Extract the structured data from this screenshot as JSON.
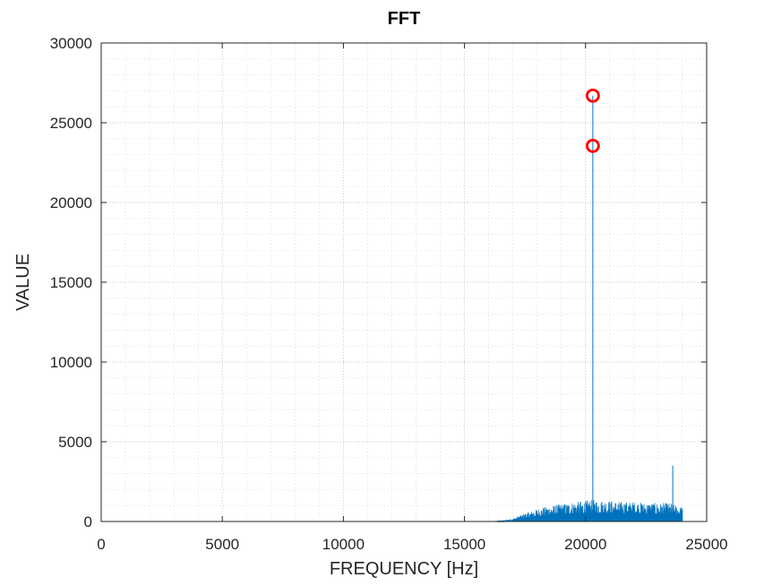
{
  "chart_data": {
    "type": "line",
    "title": "FFT",
    "xlabel": "FREQUENCY [Hz]",
    "ylabel": "VALUE",
    "xlim": [
      0,
      25000
    ],
    "ylim": [
      0,
      30000
    ],
    "xticks": [
      0,
      5000,
      10000,
      15000,
      20000,
      25000
    ],
    "yticks": [
      0,
      5000,
      10000,
      15000,
      20000,
      25000,
      30000
    ],
    "grid": true,
    "minor_grid": true,
    "series": [
      {
        "color": "#0072BD",
        "style": "spectrum-stem",
        "envelope": {
          "x": [
            0,
            16200,
            16500,
            17000,
            17500,
            18000,
            18500,
            19000,
            19500,
            20000,
            20300,
            21000,
            21500,
            22000,
            22500,
            23000,
            23500,
            23700,
            24000
          ],
          "y": [
            0,
            0,
            30,
            150,
            400,
            600,
            750,
            850,
            950,
            1000,
            1050,
            1000,
            950,
            950,
            900,
            900,
            900,
            800,
            700
          ]
        },
        "peaks": [
          {
            "x": 20300,
            "y": 26700
          },
          {
            "x": 23600,
            "y": 3500
          }
        ]
      },
      {
        "color": "#FF0000",
        "style": "markers-circle",
        "x": [
          20300,
          20300
        ],
        "y": [
          26700,
          23550
        ]
      }
    ]
  }
}
